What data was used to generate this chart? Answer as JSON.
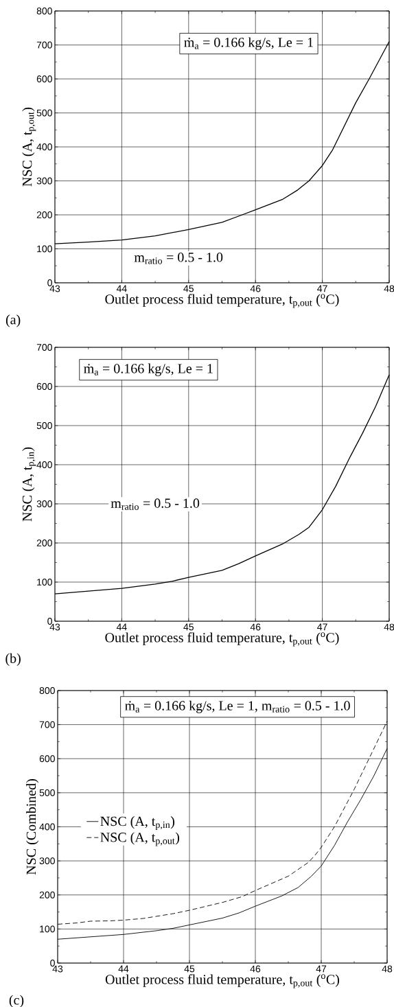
{
  "chart_data": [
    {
      "type": "line",
      "xlabel": "Outlet process fluid temperature, t$_{p,out}$ ($^{o}$C)",
      "ylabel": "NSC (A, t$_{p,out}$)",
      "xlim": [
        43,
        48
      ],
      "ylim": [
        0,
        800
      ],
      "xticks": [
        43,
        44,
        45,
        46,
        47,
        48
      ],
      "yticks": [
        0,
        100,
        200,
        300,
        400,
        500,
        600,
        700,
        800
      ],
      "grid": true,
      "marker": "none",
      "annotations": [
        "ṁ$_{a}$ = 0.166 kg/s, Le = 1",
        "m$_{ratio}$ = 0.5 - 1.0",
        "(a)"
      ],
      "series": [
        {
          "color": "#000000",
          "line_style": "solid",
          "x": [
            43,
            43.5,
            44,
            44.5,
            45,
            45.5,
            45.8,
            46,
            46.4,
            46.63,
            46.8,
            47,
            47.15,
            47.3,
            47.5,
            47.7,
            48
          ],
          "values": [
            115,
            120,
            126,
            138,
            157,
            178,
            200,
            215,
            245,
            273,
            300,
            345,
            390,
            450,
            530,
            600,
            710
          ]
        }
      ]
    },
    {
      "type": "line",
      "xlabel": "Outlet process fluid temperature, t$_{p,out}$ ($^{o}$C)",
      "ylabel": "NSC (A, t$_{p,in}$)",
      "xlim": [
        43,
        48
      ],
      "ylim": [
        0,
        700
      ],
      "xticks": [
        43,
        44,
        45,
        46,
        47,
        48
      ],
      "yticks": [
        0,
        100,
        200,
        300,
        400,
        500,
        600,
        700
      ],
      "grid": true,
      "marker": "none",
      "annotations": [
        "ṁ$_{a}$ = 0.166 kg/s, Le = 1",
        "m$_{ratio}$ = 0.5 - 1.0",
        "(b)"
      ],
      "series": [
        {
          "color": "#000000",
          "line_style": "solid",
          "x": [
            43,
            43.5,
            44,
            44.5,
            44.75,
            45,
            45.5,
            45.75,
            46,
            46.4,
            46.65,
            46.8,
            47,
            47.2,
            47.4,
            47.6,
            47.8,
            48
          ],
          "values": [
            70,
            77,
            84,
            95,
            102,
            112,
            130,
            147,
            167,
            197,
            222,
            240,
            285,
            345,
            415,
            480,
            550,
            630
          ]
        }
      ]
    },
    {
      "type": "line",
      "xlabel": "Outlet process fluid temperature, t$_{p,out}$ ($^{o}$C)",
      "ylabel": "NSC (Combined)",
      "xlim": [
        43,
        48
      ],
      "ylim": [
        0,
        800
      ],
      "xticks": [
        43,
        44,
        45,
        46,
        47,
        48
      ],
      "yticks": [
        0,
        100,
        200,
        300,
        400,
        500,
        600,
        700,
        800
      ],
      "grid": true,
      "marker": "none",
      "legend": "left",
      "annotations": [
        "ṁ$_{a}$ = 0.166 kg/s, Le = 1, m$_{ratio}$ = 0.5 - 1.0",
        "(c)"
      ],
      "series": [
        {
          "name": "NSC (A, t$_{p,in}$)",
          "color": "#000000",
          "line_style": "solid",
          "x": [
            43,
            43.5,
            44,
            44.5,
            44.75,
            45,
            45.5,
            45.75,
            46,
            46.4,
            46.65,
            46.85,
            47,
            47.2,
            47.4,
            47.6,
            47.8,
            48
          ],
          "values": [
            70,
            77,
            84,
            95,
            102,
            112,
            132,
            147,
            167,
            197,
            222,
            255,
            285,
            345,
            415,
            480,
            550,
            630
          ]
        },
        {
          "name": "NSC (A, t$_{p,out}$)",
          "color": "#000000",
          "line_style": "dashed",
          "x": [
            43,
            43.3,
            43.5,
            43.8,
            44,
            44.3,
            44.75,
            45,
            45.5,
            45.8,
            46,
            46.5,
            46.8,
            46.9,
            47,
            47.2,
            47.5,
            47.7,
            48
          ],
          "values": [
            114,
            118,
            123,
            124,
            126,
            131,
            145,
            155,
            178,
            195,
            213,
            255,
            295,
            315,
            340,
            400,
            510,
            590,
            710
          ]
        }
      ]
    }
  ]
}
